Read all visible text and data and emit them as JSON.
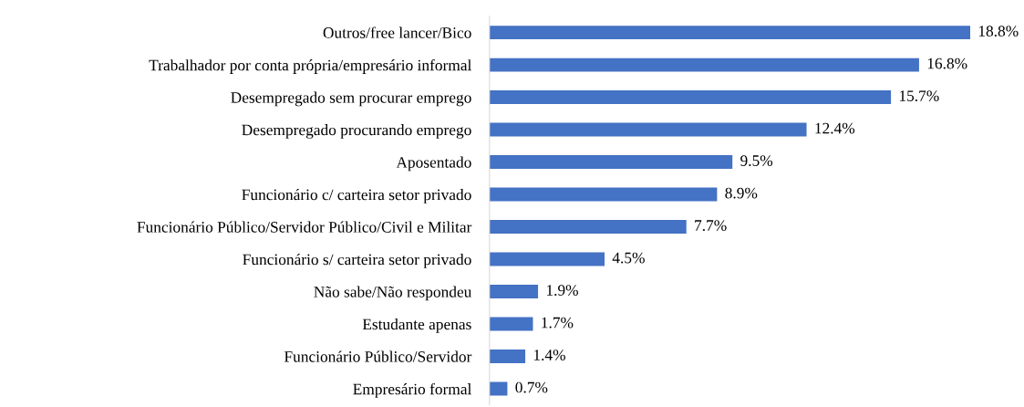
{
  "chart_data": {
    "type": "bar",
    "orientation": "horizontal",
    "tick_labels": "y",
    "categories": [
      "Outros/free lancer/Bico",
      "Trabalhador por conta própria/empresário informal",
      "Desempregado sem procurar emprego",
      "Desempregado procurando emprego",
      "Aposentado",
      "Funcionário c/ carteira setor privado",
      "Funcionário Público/Servidor Público/Civil e Militar",
      "Funcionário s/ carteira setor privado",
      "Não sabe/Não respondeu",
      "Estudante apenas",
      "Funcionário Público/Servidor",
      "Empresário formal"
    ],
    "values": [
      18.8,
      16.8,
      15.7,
      12.4,
      9.5,
      8.9,
      7.7,
      4.5,
      1.9,
      1.7,
      1.4,
      0.7
    ],
    "value_labels": [
      "18.8%",
      "16.8%",
      "15.7%",
      "12.4%",
      "9.5%",
      "8.9%",
      "7.7%",
      "4.5%",
      "1.9%",
      "1.7%",
      "1.4%",
      "0.7%"
    ],
    "color": "#4472c4",
    "grid": false,
    "legend": false
  }
}
